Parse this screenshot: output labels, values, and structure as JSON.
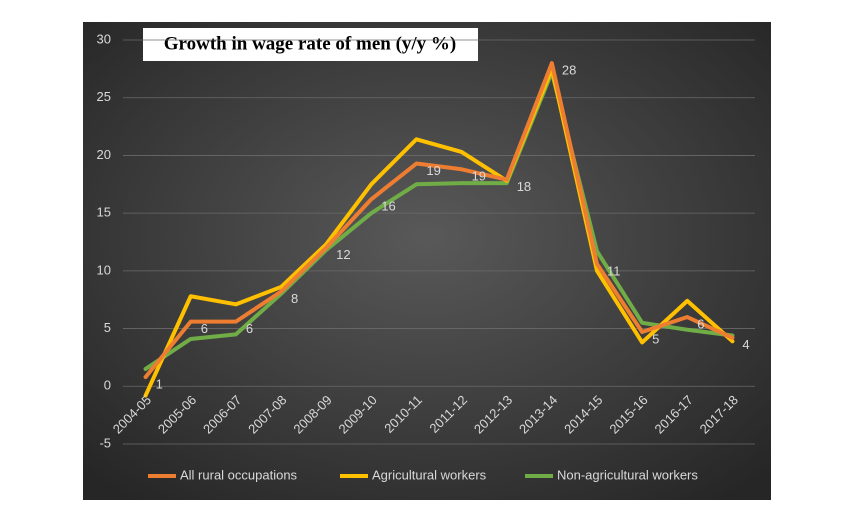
{
  "chart_data": {
    "type": "line",
    "title": "Growth in wage rate of men (y/y %)",
    "categories": [
      "2004-05",
      "2005-06",
      "2006-07",
      "2007-08",
      "2008-09",
      "2009-10",
      "2010-11",
      "2011-12",
      "2012-13",
      "2013-14",
      "2014-15",
      "2015-16",
      "2016-17",
      "2017-18"
    ],
    "series": [
      {
        "name": "All rural occupations",
        "color": "#ed7d31",
        "values": [
          0.8,
          5.6,
          5.6,
          8.2,
          12,
          16.2,
          19.3,
          18.8,
          17.9,
          28,
          10.6,
          4.7,
          6,
          4.2
        ],
        "value_labels": [
          "1",
          "6",
          "6",
          "8",
          "12",
          "16",
          "19",
          "19",
          "18",
          "28",
          "11",
          "5",
          "6",
          "4"
        ]
      },
      {
        "name": "Agricultural workers",
        "color": "#ffc000",
        "values": [
          -0.8,
          7.8,
          7.1,
          8.6,
          12.3,
          17.5,
          21.4,
          20.3,
          17.8,
          27.5,
          10,
          3.8,
          7.4,
          3.9
        ]
      },
      {
        "name": "Non-agricultural workers",
        "color": "#70ad47",
        "values": [
          1.5,
          4.1,
          4.5,
          8,
          11.8,
          15,
          17.5,
          17.6,
          17.6,
          27.2,
          11.7,
          5.5,
          4.9,
          4.4
        ]
      }
    ],
    "ylim": [
      -5,
      30
    ],
    "yticks": [
      -5,
      0,
      5,
      10,
      15,
      20,
      25,
      30
    ],
    "grid": true,
    "legend": "bottom"
  }
}
